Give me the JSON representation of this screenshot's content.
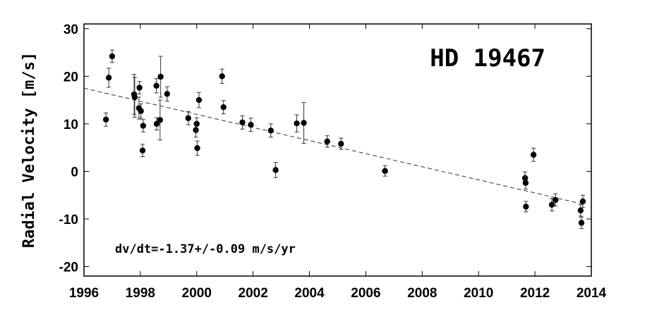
{
  "chart_data": {
    "type": "scatter",
    "title": "HD 19467",
    "xlabel": "",
    "ylabel": "Radial Velocity [m/s]",
    "annotation": "dv/dt=-1.37+/-0.09 m/s/yr",
    "xlim": [
      1996,
      2014
    ],
    "ylim": [
      -22,
      31
    ],
    "x_ticks": [
      1996,
      1998,
      2000,
      2002,
      2004,
      2006,
      2008,
      2010,
      2012,
      2014
    ],
    "y_ticks": [
      -20,
      -10,
      0,
      10,
      20,
      30
    ],
    "grid": false,
    "trend_line": {
      "style": "dashed",
      "x": [
        1996,
        2013.8
      ],
      "y": [
        17.5,
        -7.0
      ]
    },
    "series": [
      {
        "marker": "filled-circle",
        "error_bars": true,
        "points": [
          {
            "x": 1996.78,
            "y": 10.9,
            "err": 1.4
          },
          {
            "x": 1996.88,
            "y": 19.7,
            "err": 2.0
          },
          {
            "x": 1997.0,
            "y": 24.2,
            "err": 1.3
          },
          {
            "x": 1997.78,
            "y": 16.2,
            "err": 4.2
          },
          {
            "x": 1997.8,
            "y": 15.6,
            "err": 4.2
          },
          {
            "x": 1997.95,
            "y": 13.3,
            "err": 2.3
          },
          {
            "x": 1997.97,
            "y": 17.6,
            "err": 1.3
          },
          {
            "x": 1998.02,
            "y": 12.7,
            "err": 1.5
          },
          {
            "x": 1998.08,
            "y": 4.4,
            "err": 1.3
          },
          {
            "x": 1998.1,
            "y": 9.6,
            "err": 1.3
          },
          {
            "x": 1998.57,
            "y": 18.0,
            "err": 1.5
          },
          {
            "x": 1998.58,
            "y": 10.0,
            "err": 1.3
          },
          {
            "x": 1998.7,
            "y": 10.8,
            "err": 4.2
          },
          {
            "x": 1998.72,
            "y": 19.9,
            "err": 4.3
          },
          {
            "x": 1998.95,
            "y": 16.3,
            "err": 1.5
          },
          {
            "x": 1999.7,
            "y": 11.2,
            "err": 1.4
          },
          {
            "x": 1999.97,
            "y": 8.7,
            "err": 1.5
          },
          {
            "x": 2000.0,
            "y": 10.0,
            "err": 1.3
          },
          {
            "x": 2000.02,
            "y": 4.9,
            "err": 1.5
          },
          {
            "x": 2000.08,
            "y": 15.0,
            "err": 1.6
          },
          {
            "x": 2000.9,
            "y": 20.0,
            "err": 1.5
          },
          {
            "x": 2000.95,
            "y": 13.5,
            "err": 1.4
          },
          {
            "x": 2001.62,
            "y": 10.3,
            "err": 1.4
          },
          {
            "x": 2001.92,
            "y": 9.8,
            "err": 1.4
          },
          {
            "x": 2002.63,
            "y": 8.6,
            "err": 1.4
          },
          {
            "x": 2002.8,
            "y": 0.3,
            "err": 1.6
          },
          {
            "x": 2003.55,
            "y": 10.1,
            "err": 1.8
          },
          {
            "x": 2003.8,
            "y": 10.2,
            "err": 4.3
          },
          {
            "x": 2004.63,
            "y": 6.3,
            "err": 1.2
          },
          {
            "x": 2005.12,
            "y": 5.8,
            "err": 1.2
          },
          {
            "x": 2006.68,
            "y": 0.1,
            "err": 1.1
          },
          {
            "x": 2011.65,
            "y": -1.4,
            "err": 1.3
          },
          {
            "x": 2011.67,
            "y": -2.4,
            "err": 1.3
          },
          {
            "x": 2011.68,
            "y": -7.4,
            "err": 1.1
          },
          {
            "x": 2011.95,
            "y": 3.5,
            "err": 1.4
          },
          {
            "x": 2012.6,
            "y": -7.0,
            "err": 1.3
          },
          {
            "x": 2012.73,
            "y": -6.0,
            "err": 1.3
          },
          {
            "x": 2013.62,
            "y": -8.2,
            "err": 1.2
          },
          {
            "x": 2013.65,
            "y": -10.8,
            "err": 1.2
          },
          {
            "x": 2013.7,
            "y": -6.3,
            "err": 1.3
          }
        ]
      }
    ]
  }
}
